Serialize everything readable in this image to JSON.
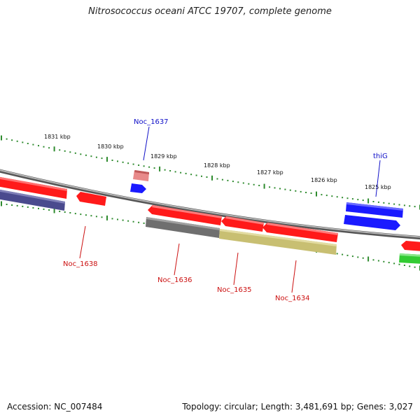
{
  "title": "Nitrosococcus oceani ATCC 19707, complete genome",
  "footer": {
    "accession": "Accession: NC_007484",
    "summary": "Topology: circular; Length: 3,481,691 bp; Genes: 3,027"
  },
  "colors": {
    "tick": "#2e8b2e",
    "backbone": "#8a8a8a",
    "plus_label": "#1010c8",
    "minus_label": "#cc1111",
    "red_gene": "#ff1a1a",
    "pink_gene": "#e88a8a",
    "blue_gene": "#1a1aff",
    "navy_gene": "#4a4a8e",
    "grey_gene": "#6f6f6f",
    "olive_gene": "#c8bf72",
    "green_gene": "#33cc33"
  },
  "scale": {
    "kbp_labels": [
      "1831 kbp",
      "1830 kbp",
      "1829 kbp",
      "1828 kbp",
      "1827 kbp",
      "1826 kbp",
      "1825 kbp"
    ]
  },
  "genes": {
    "noc_1637": "Noc_1637",
    "thiG": "thiG",
    "noc_1638": "Noc_1638",
    "noc_1636": "Noc_1636",
    "noc_1635": "Noc_1635",
    "noc_1634": "Noc_1634"
  }
}
